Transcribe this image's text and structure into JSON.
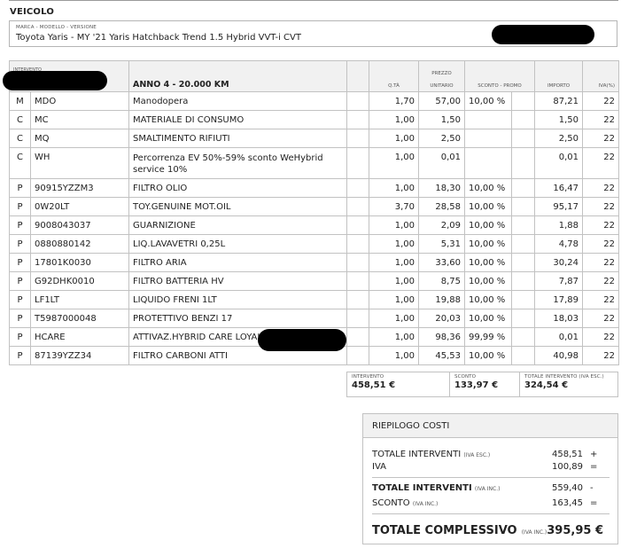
{
  "vehicle": {
    "section_title": "VEICOLO",
    "field_label": "MARCA - MODELLO - VERSIONE",
    "field_value": "Toyota Yaris - MY '21 Yaris Hatchback Trend 1.5 Hybrid VVT-i CVT"
  },
  "table": {
    "headers": {
      "intervento": "INTERVENTO",
      "anno": "ANNO 4 - 20.000 KM",
      "qta": "Q.TÀ",
      "prezzo_1": "PREZZO",
      "prezzo_2": "UNITARIO",
      "sconto": "SCONTO - PROMO",
      "importo": "IMPORTO",
      "iva": "IVA(%)"
    },
    "rows": [
      {
        "type": "M",
        "code": "MDO",
        "desc": "Manodopera",
        "qty": "1,70",
        "price": "57,00",
        "disc": "10,00 %",
        "amount": "87,21",
        "vat": "22"
      },
      {
        "type": "C",
        "code": "MC",
        "desc": "MATERIALE DI CONSUMO",
        "qty": "1,00",
        "price": "1,50",
        "disc": "",
        "amount": "1,50",
        "vat": "22"
      },
      {
        "type": "C",
        "code": "MQ",
        "desc": "SMALTIMENTO RIFIUTI",
        "qty": "1,00",
        "price": "2,50",
        "disc": "",
        "amount": "2,50",
        "vat": "22"
      },
      {
        "type": "C",
        "code": "WH",
        "desc": "Percorrenza EV 50%-59% sconto WeHybrid service 10%",
        "qty": "1,00",
        "price": "0,01",
        "disc": "",
        "amount": "0,01",
        "vat": "22"
      },
      {
        "type": "P",
        "code": "90915YZZM3",
        "desc": "FILTRO OLIO",
        "qty": "1,00",
        "price": "18,30",
        "disc": "10,00 %",
        "amount": "16,47",
        "vat": "22"
      },
      {
        "type": "P",
        "code": "0W20LT",
        "desc": "TOY.GENUINE MOT.OIL",
        "qty": "3,70",
        "price": "28,58",
        "disc": "10,00 %",
        "amount": "95,17",
        "vat": "22"
      },
      {
        "type": "P",
        "code": "9008043037",
        "desc": "GUARNIZIONE",
        "qty": "1,00",
        "price": "2,09",
        "disc": "10,00 %",
        "amount": "1,88",
        "vat": "22"
      },
      {
        "type": "P",
        "code": "0880880142",
        "desc": "LIQ.LAVAVETRI 0,25L",
        "qty": "1,00",
        "price": "5,31",
        "disc": "10,00 %",
        "amount": "4,78",
        "vat": "22"
      },
      {
        "type": "P",
        "code": "17801K0030",
        "desc": "FILTRO ARIA",
        "qty": "1,00",
        "price": "33,60",
        "disc": "10,00 %",
        "amount": "30,24",
        "vat": "22"
      },
      {
        "type": "P",
        "code": "G92DHK0010",
        "desc": "FILTRO BATTERIA HV",
        "qty": "1,00",
        "price": "8,75",
        "disc": "10,00 %",
        "amount": "7,87",
        "vat": "22"
      },
      {
        "type": "P",
        "code": "LF1LT",
        "desc": "LIQUIDO FRENI 1LT",
        "qty": "1,00",
        "price": "19,88",
        "disc": "10,00 %",
        "amount": "17,89",
        "vat": "22"
      },
      {
        "type": "P",
        "code": "T5987000048",
        "desc": "PROTETTIVO BENZI 17",
        "qty": "1,00",
        "price": "20,03",
        "disc": "10,00 %",
        "amount": "18,03",
        "vat": "22"
      },
      {
        "type": "P",
        "code": "HCARE",
        "desc": "ATTIVAZ.HYBRID CARE LOYAL",
        "qty": "1,00",
        "price": "98,36",
        "disc": "99,99 %",
        "amount": "0,01",
        "vat": "22"
      },
      {
        "type": "P",
        "code": "87139YZZ34",
        "desc": "FILTRO CARBONI ATTI",
        "qty": "1,00",
        "price": "45,53",
        "disc": "10,00 %",
        "amount": "40,98",
        "vat": "22"
      }
    ],
    "totals": {
      "intervento_label": "INTERVENTO",
      "intervento_value": "458,51 €",
      "sconto_label": "SCONTO",
      "sconto_value": "133,97 €",
      "totale_label": "TOTALE INTERVENTO (IVA ESC.)",
      "totale_value": "324,54 €"
    }
  },
  "summary": {
    "title": "RIEPILOGO COSTI",
    "l1_label": "TOTALE INTERVENTI",
    "l1_note": "(IVA ESC.)",
    "l1_value": "458,51",
    "l1_op": "+",
    "l2_label": "IVA",
    "l2_value": "100,89",
    "l2_op": "=",
    "l3_label": "TOTALE INTERVENTI",
    "l3_note": "(IVA INC.)",
    "l3_value": "559,40",
    "l3_op": "-",
    "l4_label": "SCONTO",
    "l4_note": "(IVA INC.)",
    "l4_value": "163,45",
    "l4_op": "=",
    "grand_label": "TOTALE COMPLESSIVO",
    "grand_note": "(IVA INC.)",
    "grand_value": "395,95 €"
  }
}
